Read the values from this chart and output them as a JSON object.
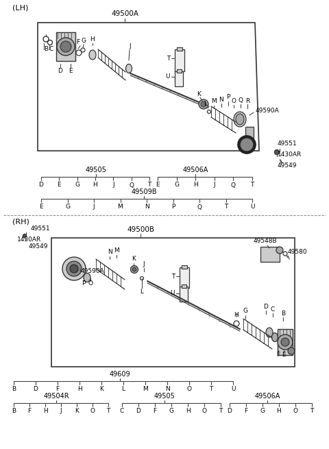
{
  "bg_color": "#ffffff",
  "lh_label": "(LH)",
  "rh_label": "(RH)",
  "lh_box_label": "49500A",
  "rh_box_label": "49500B",
  "line_color": "#444444",
  "text_color": "#000000",
  "lh_49505_letters": [
    "D",
    "E",
    "G",
    "H",
    "J",
    "Q",
    "T"
  ],
  "lh_49506A_letters": [
    "E",
    "G",
    "H",
    "J",
    "Q",
    "T"
  ],
  "lh_49509B_letters": [
    "E",
    "G",
    "J",
    "M",
    "N",
    "P",
    "Q",
    "T",
    "U"
  ],
  "rh_49609_letters": [
    "B",
    "D",
    "F",
    "H",
    "K",
    "L",
    "M",
    "N",
    "O",
    "T",
    "U"
  ],
  "rh_49504R_letters": [
    "B",
    "F",
    "H",
    "J",
    "K",
    "O",
    "T"
  ],
  "rh_49505_letters": [
    "C",
    "D",
    "F",
    "G",
    "H",
    "O",
    "T"
  ],
  "rh_49506A_letters": [
    "D",
    "F",
    "G",
    "H",
    "O",
    "T"
  ]
}
